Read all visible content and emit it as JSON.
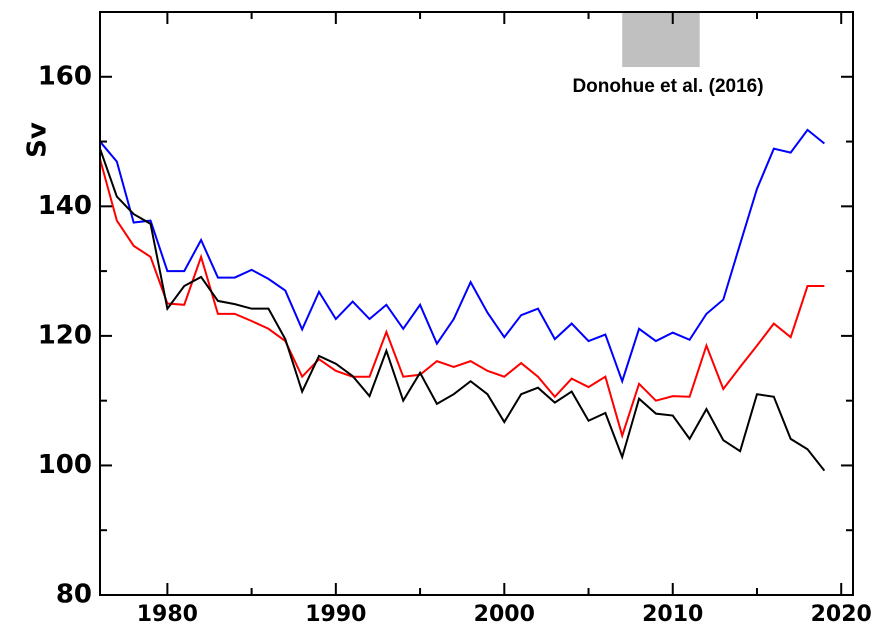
{
  "chart_data": {
    "type": "line",
    "ylabel": "Sv",
    "annotation": "Donohue et al. (2016)",
    "shade": {
      "x": [
        2007,
        2011.6
      ],
      "y": [
        161.5,
        170
      ],
      "color": "#c0c0c0"
    },
    "x": [
      1976,
      1977,
      1978,
      1979,
      1980,
      1981,
      1982,
      1983,
      1984,
      1985,
      1986,
      1987,
      1988,
      1989,
      1990,
      1991,
      1992,
      1993,
      1994,
      1995,
      1996,
      1997,
      1998,
      1999,
      2000,
      2001,
      2002,
      2003,
      2004,
      2005,
      2006,
      2007,
      2008,
      2009,
      2010,
      2011,
      2012,
      2013,
      2014,
      2015,
      2016,
      2017,
      2018,
      2019
    ],
    "series": [
      {
        "color": "#0000ff",
        "values": [
          150,
          146.9,
          137.5,
          137.8,
          130,
          130,
          134.8,
          129,
          129,
          130.2,
          128.8,
          127,
          121,
          126.8,
          122.6,
          125.3,
          122.6,
          124.8,
          121.1,
          124.8,
          118.8,
          122.6,
          128.3,
          123.6,
          119.8,
          123.2,
          124.2,
          119.5,
          121.9,
          119.2,
          120.2,
          113,
          121.1,
          119.2,
          120.5,
          119.4,
          123.4,
          125.6,
          134.2,
          142.7,
          148.9,
          148.3,
          151.8,
          149.7
        ]
      },
      {
        "color": "#ff0000",
        "values": [
          147.3,
          137.8,
          133.9,
          132.2,
          125,
          124.8,
          132.2,
          123.4,
          123.4,
          122.3,
          121.1,
          119.2,
          113.7,
          116.4,
          114.6,
          113.7,
          113.7,
          120.6,
          113.7,
          114,
          116.1,
          115.2,
          116.1,
          114.6,
          113.7,
          115.8,
          113.7,
          110.6,
          113.4,
          112.1,
          113.7,
          104.6,
          112.6,
          110,
          110.7,
          110.6,
          118.5,
          111.8,
          115.2,
          118.5,
          121.9,
          119.8,
          127.7,
          127.7
        ]
      },
      {
        "color": "#000000",
        "values": [
          148.9,
          141.5,
          138.8,
          137.3,
          124.2,
          127.7,
          129.1,
          125.4,
          124.9,
          124.2,
          124.2,
          119.5,
          111.4,
          116.9,
          115.7,
          113.8,
          110.7,
          117.7,
          110,
          114.3,
          109.5,
          111,
          113,
          111,
          106.7,
          111,
          112,
          109.7,
          111.4,
          106.9,
          108.1,
          101.3,
          110.3,
          108,
          107.7,
          104.1,
          108.7,
          103.9,
          102.2,
          111,
          110.6,
          104.1,
          102.5,
          99.2
        ]
      }
    ],
    "xlim": [
      1976,
      2020.7
    ],
    "ylim": [
      80,
      170
    ],
    "xticks": [
      1980,
      1990,
      2000,
      2010,
      2020
    ],
    "xticks_minor": [
      1985,
      1995,
      2005,
      2015
    ],
    "yticks": [
      80,
      100,
      120,
      140,
      160
    ],
    "yticks_minor": [
      90,
      110,
      130,
      150
    ]
  }
}
